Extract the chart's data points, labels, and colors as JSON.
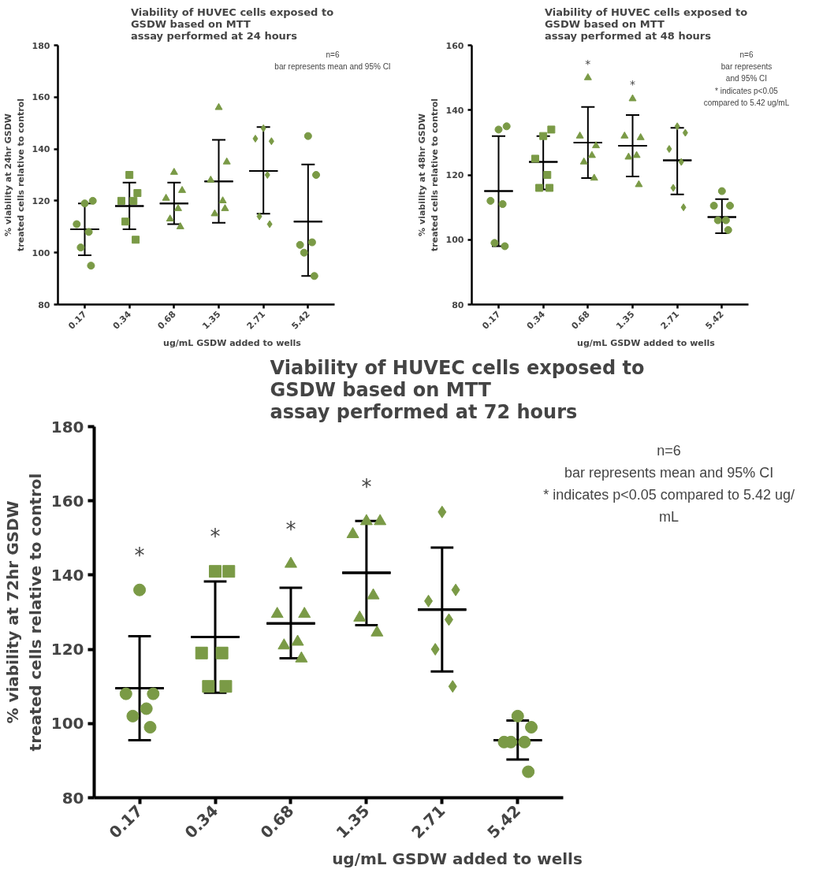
{
  "chart_data": [
    {
      "type": "scatter",
      "title": "Viability of HUVEC cells exposed to\nGSDW based on MTT\nassay performed at 24 hours",
      "xlabel": "ug/mL GSDW added to wells",
      "ylabel": "% viability at 24hr GSDW\ntreated cells relative to control",
      "categories": [
        "0.17",
        "0.34",
        "0.68",
        "1.35",
        "2.71",
        "5.42"
      ],
      "ylim": [
        80,
        180
      ],
      "yticks": [
        80,
        100,
        120,
        140,
        160,
        180
      ],
      "series": [
        {
          "marker": "circle",
          "color": "#7a9a46",
          "x": [
            "0.17",
            "0.17",
            "0.17",
            "0.17",
            "0.17",
            "0.17"
          ],
          "values": [
            119,
            120,
            111,
            108,
            102,
            95
          ]
        },
        {
          "marker": "square",
          "color": "#7a9a46",
          "x": [
            "0.34",
            "0.34",
            "0.34",
            "0.34",
            "0.34",
            "0.34"
          ],
          "values": [
            130,
            123,
            120,
            120,
            112,
            105
          ]
        },
        {
          "marker": "triangle",
          "color": "#7a9a46",
          "x": [
            "0.68",
            "0.68",
            "0.68",
            "0.68",
            "0.68",
            "0.68"
          ],
          "values": [
            131,
            124,
            121,
            117,
            113,
            110
          ]
        },
        {
          "marker": "triangle",
          "color": "#7a9a46",
          "x": [
            "1.35",
            "1.35",
            "1.35",
            "1.35",
            "1.35",
            "1.35"
          ],
          "values": [
            156,
            135,
            128,
            120,
            115,
            117
          ]
        },
        {
          "marker": "diamond",
          "color": "#7a9a46",
          "x": [
            "2.71",
            "2.71",
            "2.71",
            "2.71",
            "2.71",
            "2.71"
          ],
          "values": [
            148,
            143,
            144,
            130,
            114,
            111
          ]
        },
        {
          "marker": "circle",
          "color": "#7a9a46",
          "x": [
            "5.42",
            "5.42",
            "5.42",
            "5.42",
            "5.42",
            "5.42"
          ],
          "values": [
            145,
            130,
            103,
            104,
            100,
            91
          ]
        },
        {
          "type": "box",
          "color": "#000000",
          "boxes": [
            {
              "low": 99,
              "q1": 109,
              "median": 109,
              "q3": 109,
              "high": 119
            },
            {
              "low": 109,
              "q1": 118,
              "median": 118,
              "q3": 118,
              "high": 127
            },
            {
              "low": 111,
              "q1": 119,
              "median": 119,
              "q3": 119,
              "high": 127
            },
            {
              "low": 111.5,
              "q1": 127.5,
              "median": 127.5,
              "q3": 127.5,
              "high": 143.5
            },
            {
              "low": 115,
              "q1": 131.5,
              "median": 131.5,
              "q3": 131.5,
              "high": 148.5
            },
            {
              "low": 91,
              "q1": 112,
              "median": 112,
              "q3": 112,
              "high": 134
            }
          ]
        }
      ],
      "annotations": [
        "n=6\nbar represents mean and 95% CI"
      ]
    },
    {
      "type": "scatter",
      "title": "Viability of HUVEC cells exposed to\nGSDW based on MTT\nassay performed at 48 hours",
      "xlabel": "ug/mL GSDW added to wells",
      "ylabel": "% viability at 48hr GSDW\ntreated cells relative to control",
      "categories": [
        "0.17",
        "0.34",
        "0.68",
        "1.35",
        "2.71",
        "5.42"
      ],
      "ylim": [
        80,
        160
      ],
      "yticks": [
        80,
        100,
        120,
        140,
        160
      ],
      "series": [
        {
          "marker": "circle",
          "color": "#7a9a46",
          "x": [
            "0.17",
            "0.17",
            "0.17",
            "0.17",
            "0.17",
            "0.17"
          ],
          "values": [
            134,
            135,
            112,
            111,
            99,
            98
          ]
        },
        {
          "marker": "square",
          "color": "#7a9a46",
          "x": [
            "0.34",
            "0.34",
            "0.34",
            "0.34",
            "0.34",
            "0.34"
          ],
          "values": [
            132,
            134,
            125,
            120,
            116,
            116
          ]
        },
        {
          "marker": "triangle",
          "color": "#7a9a46",
          "x": [
            "0.68",
            "0.68",
            "0.68",
            "0.68",
            "0.68",
            "0.68"
          ],
          "values": [
            150,
            129,
            132,
            126,
            124,
            119
          ]
        },
        {
          "marker": "triangle",
          "color": "#7a9a46",
          "x": [
            "1.35",
            "1.35",
            "1.35",
            "1.35",
            "1.35",
            "1.35"
          ],
          "values": [
            143.5,
            131.5,
            132,
            126,
            125.5,
            117
          ]
        },
        {
          "marker": "diamond",
          "color": "#7a9a46",
          "x": [
            "2.71",
            "2.71",
            "2.71",
            "2.71",
            "2.71",
            "2.71"
          ],
          "values": [
            135,
            133,
            128,
            124,
            116,
            110
          ]
        },
        {
          "marker": "circle",
          "color": "#7a9a46",
          "x": [
            "5.42",
            "5.42",
            "5.42",
            "5.42",
            "5.42",
            "5.42"
          ],
          "values": [
            115,
            110.5,
            110.5,
            106,
            106,
            103
          ]
        },
        {
          "type": "box",
          "color": "#000000",
          "boxes": [
            {
              "low": 98,
              "q1": 115,
              "median": 115,
              "q3": 115,
              "high": 132
            },
            {
              "low": 115.5,
              "q1": 124,
              "median": 124,
              "q3": 124,
              "high": 132
            },
            {
              "low": 119,
              "q1": 130,
              "median": 130,
              "q3": 130,
              "high": 141
            },
            {
              "low": 119.5,
              "q1": 129,
              "median": 129,
              "q3": 129,
              "high": 138.5
            },
            {
              "low": 114,
              "q1": 124.5,
              "median": 124.5,
              "q3": 124.5,
              "high": 134.5
            },
            {
              "low": 102,
              "q1": 107,
              "median": 107,
              "q3": 107,
              "high": 112.5
            }
          ]
        }
      ],
      "annotations": [
        "n=6\nbar represents\nand 95% CI\n* indicates p<0.05\ncompared to 5.42 ug/mL",
        {
          "text": "*",
          "x": "0.68",
          "y": 150
        },
        {
          "text": "*",
          "x": "1.35",
          "y": 143.5
        }
      ]
    },
    {
      "type": "scatter",
      "title": "Viability of HUVEC cells exposed to\nGSDW based on MTT\nassay performed at 72 hours",
      "xlabel": "ug/mL GSDW added to wells",
      "ylabel": "% viability at 72hr GSDW\ntreated cells relative to control",
      "categories": [
        "0.17",
        "0.34",
        "0.68",
        "1.35",
        "2.71",
        "5.42"
      ],
      "ylim": [
        80,
        180
      ],
      "yticks": [
        80,
        100,
        120,
        140,
        160,
        180
      ],
      "series": [
        {
          "marker": "circle",
          "color": "#7a9a46",
          "x": [
            "0.17",
            "0.17",
            "0.17",
            "0.17",
            "0.17",
            "0.17"
          ],
          "values": [
            136,
            108,
            108,
            104,
            102,
            99
          ]
        },
        {
          "marker": "square",
          "color": "#7a9a46",
          "x": [
            "0.34",
            "0.34",
            "0.34",
            "0.34",
            "0.34",
            "0.34"
          ],
          "values": [
            141,
            141,
            119,
            119,
            110,
            110
          ]
        },
        {
          "marker": "triangle",
          "color": "#7a9a46",
          "x": [
            "0.68",
            "0.68",
            "0.68",
            "0.68",
            "0.68",
            "0.68"
          ],
          "values": [
            143,
            129.5,
            129.5,
            122,
            121,
            117.5
          ]
        },
        {
          "marker": "triangle",
          "color": "#7a9a46",
          "x": [
            "1.35",
            "1.35",
            "1.35",
            "1.35",
            "1.35",
            "1.35"
          ],
          "values": [
            154.5,
            154.5,
            151,
            134.5,
            128.5,
            124.5
          ]
        },
        {
          "marker": "diamond",
          "color": "#7a9a46",
          "x": [
            "2.71",
            "2.71",
            "2.71",
            "2.71",
            "2.71",
            "2.71"
          ],
          "values": [
            157,
            136,
            133,
            128,
            120,
            110
          ]
        },
        {
          "marker": "circle",
          "color": "#7a9a46",
          "x": [
            "5.42",
            "5.42",
            "5.42",
            "5.42",
            "5.42",
            "5.42"
          ],
          "values": [
            102,
            99,
            95,
            95,
            95,
            87
          ]
        },
        {
          "type": "box",
          "color": "#000000",
          "boxes": [
            {
              "low": 95.5,
              "q1": 109.5,
              "median": 109.5,
              "q3": 109.5,
              "high": 123.5
            },
            {
              "low": 108.3,
              "q1": 123.3,
              "median": 123.3,
              "q3": 123.3,
              "high": 138.3
            },
            {
              "low": 117.6,
              "q1": 127,
              "median": 127,
              "q3": 127,
              "high": 136.6
            },
            {
              "low": 126.5,
              "q1": 140.6,
              "median": 140.6,
              "q3": 140.6,
              "high": 154.6
            },
            {
              "low": 114,
              "q1": 130.7,
              "median": 130.7,
              "q3": 130.7,
              "high": 147.4
            },
            {
              "low": 90.3,
              "q1": 95.5,
              "median": 95.5,
              "q3": 95.5,
              "high": 100.8
            }
          ]
        }
      ],
      "annotations": [
        "n=6\nbar represents mean and 95% CI\n* indicates p<0.05 compared to 5.42 ug/\nmL",
        {
          "text": "*",
          "x": "0.17",
          "y": 136
        },
        {
          "text": "*",
          "x": "0.34",
          "y": 141
        },
        {
          "text": "*",
          "x": "0.68",
          "y": 143
        },
        {
          "text": "*",
          "x": "1.35",
          "y": 154.5
        }
      ]
    }
  ]
}
